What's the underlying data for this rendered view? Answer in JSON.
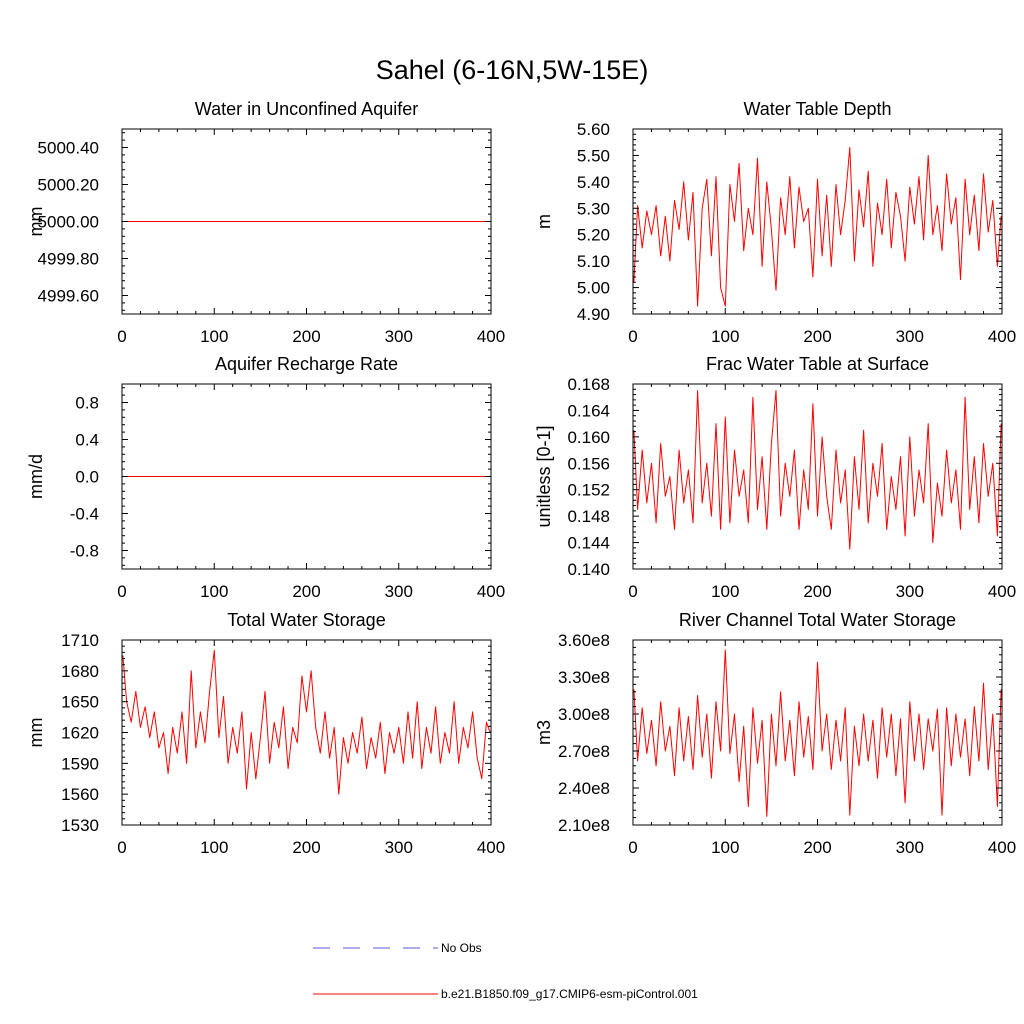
{
  "figure": {
    "title": "Sahel (6-16N,5W-15E)"
  },
  "colors": {
    "series": "#ff0000",
    "obs": "#5a5ad8",
    "axis": "#000000"
  },
  "legend": {
    "obs_label": "No Obs",
    "series_label": "b.e21.B1850.f09_g17.CMIP6-esm-piControl.001"
  },
  "chart_data": [
    {
      "type": "line",
      "title": "Water in Unconfined Aquifer",
      "ylabel": "mm",
      "xlabel": "",
      "xlim": [
        0,
        400
      ],
      "ylim": [
        4999.5,
        5000.5
      ],
      "xticks": [
        0,
        100,
        200,
        300,
        400
      ],
      "xtick_labels": [
        "0",
        "100",
        "200",
        "300",
        "400"
      ],
      "yticks": [
        4999.6,
        4999.8,
        5000.0,
        5000.2,
        5000.4
      ],
      "ytick_labels": [
        "4999.60",
        "4999.80",
        "5000.00",
        "5000.20",
        "5000.40"
      ],
      "series": [
        {
          "name": "b.e21.B1850.f09_g17.CMIP6-esm-piControl.001",
          "x": [
            0,
            400
          ],
          "values": [
            5000.0,
            5000.0
          ]
        }
      ]
    },
    {
      "type": "line",
      "title": "Water Table Depth",
      "ylabel": "m",
      "xlabel": "",
      "xlim": [
        0,
        400
      ],
      "ylim": [
        4.9,
        5.6
      ],
      "xticks": [
        0,
        100,
        200,
        300,
        400
      ],
      "xtick_labels": [
        "0",
        "100",
        "200",
        "300",
        "400"
      ],
      "yticks": [
        4.9,
        5.0,
        5.1,
        5.2,
        5.3,
        5.4,
        5.5,
        5.6
      ],
      "ytick_labels": [
        "4.90",
        "5.00",
        "5.10",
        "5.20",
        "5.30",
        "5.40",
        "5.50",
        "5.60"
      ],
      "series": [
        {
          "name": "b.e21.B1850.f09_g17.CMIP6-esm-piControl.001",
          "x": [
            1,
            5,
            10,
            15,
            20,
            25,
            30,
            35,
            40,
            45,
            50,
            55,
            60,
            65,
            70,
            75,
            80,
            85,
            90,
            95,
            100,
            105,
            110,
            115,
            120,
            125,
            130,
            135,
            140,
            145,
            150,
            155,
            160,
            165,
            170,
            175,
            180,
            185,
            190,
            195,
            200,
            205,
            210,
            215,
            220,
            225,
            230,
            235,
            240,
            245,
            250,
            255,
            260,
            265,
            270,
            275,
            280,
            285,
            290,
            295,
            300,
            305,
            310,
            315,
            320,
            325,
            330,
            335,
            340,
            345,
            350,
            355,
            360,
            365,
            370,
            375,
            380,
            385,
            390,
            395,
            399
          ],
          "values": [
            5.02,
            5.31,
            5.15,
            5.29,
            5.2,
            5.31,
            5.12,
            5.27,
            5.1,
            5.33,
            5.22,
            5.4,
            5.18,
            5.36,
            4.93,
            5.3,
            5.41,
            5.12,
            5.42,
            5.0,
            4.93,
            5.39,
            5.25,
            5.47,
            5.14,
            5.3,
            5.2,
            5.49,
            5.08,
            5.4,
            5.22,
            4.99,
            5.34,
            5.2,
            5.42,
            5.15,
            5.38,
            5.25,
            5.3,
            5.04,
            5.41,
            5.12,
            5.35,
            5.08,
            5.39,
            5.2,
            5.33,
            5.53,
            5.1,
            5.37,
            5.23,
            5.44,
            5.08,
            5.32,
            5.2,
            5.41,
            5.15,
            5.36,
            5.27,
            5.1,
            5.38,
            5.24,
            5.42,
            5.18,
            5.5,
            5.2,
            5.31,
            5.14,
            5.43,
            5.24,
            5.34,
            5.03,
            5.41,
            5.2,
            5.35,
            5.14,
            5.43,
            5.21,
            5.33,
            5.08,
            5.27
          ]
        }
      ]
    },
    {
      "type": "line",
      "title": "Aquifer Recharge Rate",
      "ylabel": "mm/d",
      "xlabel": "",
      "xlim": [
        0,
        400
      ],
      "ylim": [
        -1.0,
        1.0
      ],
      "xticks": [
        0,
        100,
        200,
        300,
        400
      ],
      "xtick_labels": [
        "0",
        "100",
        "200",
        "300",
        "400"
      ],
      "yticks": [
        -0.8,
        -0.4,
        0.0,
        0.4,
        0.8
      ],
      "ytick_labels": [
        "-0.8",
        "-0.4",
        "0.0",
        "0.4",
        "0.8"
      ],
      "series": [
        {
          "name": "b.e21.B1850.f09_g17.CMIP6-esm-piControl.001",
          "x": [
            0,
            400
          ],
          "values": [
            0.0,
            0.0
          ]
        }
      ]
    },
    {
      "type": "line",
      "title": "Frac Water Table at Surface",
      "ylabel": "unitless [0-1]",
      "xlabel": "",
      "xlim": [
        0,
        400
      ],
      "ylim": [
        0.14,
        0.168
      ],
      "xticks": [
        0,
        100,
        200,
        300,
        400
      ],
      "xtick_labels": [
        "0",
        "100",
        "200",
        "300",
        "400"
      ],
      "yticks": [
        0.14,
        0.144,
        0.148,
        0.152,
        0.156,
        0.16,
        0.164,
        0.168
      ],
      "ytick_labels": [
        "0.140",
        "0.144",
        "0.148",
        "0.152",
        "0.156",
        "0.160",
        "0.164",
        "0.168"
      ],
      "series": [
        {
          "name": "b.e21.B1850.f09_g17.CMIP6-esm-piControl.001",
          "x": [
            1,
            5,
            10,
            15,
            20,
            25,
            30,
            35,
            40,
            45,
            50,
            55,
            60,
            65,
            70,
            75,
            80,
            85,
            90,
            95,
            100,
            105,
            110,
            115,
            120,
            125,
            130,
            135,
            140,
            145,
            150,
            155,
            160,
            165,
            170,
            175,
            180,
            185,
            190,
            195,
            200,
            205,
            210,
            215,
            220,
            225,
            230,
            235,
            240,
            245,
            250,
            255,
            260,
            265,
            270,
            275,
            280,
            285,
            290,
            295,
            300,
            305,
            310,
            315,
            320,
            325,
            330,
            335,
            340,
            345,
            350,
            355,
            360,
            365,
            370,
            375,
            380,
            385,
            390,
            395,
            399
          ],
          "values": [
            0.161,
            0.149,
            0.158,
            0.15,
            0.156,
            0.147,
            0.159,
            0.151,
            0.154,
            0.146,
            0.158,
            0.15,
            0.155,
            0.147,
            0.167,
            0.15,
            0.156,
            0.148,
            0.162,
            0.146,
            0.163,
            0.147,
            0.158,
            0.151,
            0.155,
            0.147,
            0.166,
            0.149,
            0.157,
            0.146,
            0.159,
            0.167,
            0.148,
            0.156,
            0.151,
            0.158,
            0.146,
            0.155,
            0.149,
            0.165,
            0.148,
            0.16,
            0.151,
            0.146,
            0.158,
            0.15,
            0.155,
            0.143,
            0.157,
            0.149,
            0.161,
            0.147,
            0.156,
            0.151,
            0.159,
            0.146,
            0.154,
            0.149,
            0.157,
            0.145,
            0.16,
            0.148,
            0.155,
            0.15,
            0.162,
            0.144,
            0.153,
            0.148,
            0.158,
            0.15,
            0.155,
            0.146,
            0.166,
            0.149,
            0.157,
            0.147,
            0.159,
            0.151,
            0.156,
            0.145,
            0.162
          ]
        }
      ]
    },
    {
      "type": "line",
      "title": "Total Water Storage",
      "ylabel": "mm",
      "xlabel": "",
      "xlim": [
        0,
        400
      ],
      "ylim": [
        1530,
        1710
      ],
      "xticks": [
        0,
        100,
        200,
        300,
        400
      ],
      "xtick_labels": [
        "0",
        "100",
        "200",
        "300",
        "400"
      ],
      "yticks": [
        1530,
        1560,
        1590,
        1620,
        1650,
        1680,
        1710
      ],
      "ytick_labels": [
        "1530",
        "1560",
        "1590",
        "1620",
        "1650",
        "1680",
        "1710"
      ],
      "series": [
        {
          "name": "b.e21.B1850.f09_g17.CMIP6-esm-piControl.001",
          "x": [
            1,
            5,
            10,
            15,
            20,
            25,
            30,
            35,
            40,
            45,
            50,
            55,
            60,
            65,
            70,
            75,
            80,
            85,
            90,
            95,
            100,
            105,
            110,
            115,
            120,
            125,
            130,
            135,
            140,
            145,
            150,
            155,
            160,
            165,
            170,
            175,
            180,
            185,
            190,
            195,
            200,
            205,
            210,
            215,
            220,
            225,
            230,
            235,
            240,
            245,
            250,
            255,
            260,
            265,
            270,
            275,
            280,
            285,
            290,
            295,
            300,
            305,
            310,
            315,
            320,
            325,
            330,
            335,
            340,
            345,
            350,
            355,
            360,
            365,
            370,
            375,
            380,
            385,
            390,
            395,
            399
          ],
          "values": [
            1695,
            1650,
            1630,
            1660,
            1625,
            1645,
            1615,
            1640,
            1605,
            1620,
            1580,
            1625,
            1600,
            1640,
            1590,
            1680,
            1605,
            1640,
            1610,
            1660,
            1700,
            1615,
            1655,
            1590,
            1625,
            1600,
            1640,
            1565,
            1620,
            1575,
            1615,
            1660,
            1590,
            1630,
            1605,
            1645,
            1585,
            1625,
            1610,
            1675,
            1640,
            1680,
            1625,
            1600,
            1640,
            1595,
            1625,
            1560,
            1615,
            1590,
            1620,
            1600,
            1635,
            1585,
            1615,
            1595,
            1630,
            1580,
            1620,
            1600,
            1625,
            1590,
            1640,
            1595,
            1650,
            1585,
            1625,
            1600,
            1645,
            1590,
            1620,
            1600,
            1650,
            1590,
            1625,
            1605,
            1640,
            1595,
            1575,
            1630,
            1620
          ]
        }
      ]
    },
    {
      "type": "line",
      "title": "River Channel Total Water Storage",
      "ylabel": "m3",
      "xlabel": "",
      "xlim": [
        0,
        400
      ],
      "ylim": [
        210000000,
        360000000
      ],
      "xticks": [
        0,
        100,
        200,
        300,
        400
      ],
      "xtick_labels": [
        "0",
        "100",
        "200",
        "300",
        "400"
      ],
      "yticks": [
        210000000,
        240000000,
        270000000,
        300000000,
        330000000,
        360000000
      ],
      "ytick_labels": [
        "2.10e8",
        "2.40e8",
        "2.70e8",
        "3.00e8",
        "3.30e8",
        "3.60e8"
      ],
      "series": [
        {
          "name": "b.e21.B1850.f09_g17.CMIP6-esm-piControl.001",
          "x": [
            1,
            5,
            10,
            15,
            20,
            25,
            30,
            35,
            40,
            45,
            50,
            55,
            60,
            65,
            70,
            75,
            80,
            85,
            90,
            95,
            100,
            105,
            110,
            115,
            120,
            125,
            130,
            135,
            140,
            145,
            150,
            155,
            160,
            165,
            170,
            175,
            180,
            185,
            190,
            195,
            200,
            205,
            210,
            215,
            220,
            225,
            230,
            235,
            240,
            245,
            250,
            255,
            260,
            265,
            270,
            275,
            280,
            285,
            290,
            295,
            300,
            305,
            310,
            315,
            320,
            325,
            330,
            335,
            340,
            345,
            350,
            355,
            360,
            365,
            370,
            375,
            380,
            385,
            390,
            395,
            399
          ],
          "values": [
            320000000,
            262000000,
            305000000,
            268000000,
            295000000,
            258000000,
            310000000,
            270000000,
            290000000,
            250000000,
            305000000,
            262000000,
            298000000,
            255000000,
            315000000,
            265000000,
            300000000,
            248000000,
            310000000,
            270000000,
            352000000,
            268000000,
            300000000,
            245000000,
            290000000,
            225000000,
            305000000,
            260000000,
            295000000,
            217000000,
            300000000,
            258000000,
            318000000,
            262000000,
            295000000,
            250000000,
            310000000,
            265000000,
            298000000,
            255000000,
            342000000,
            270000000,
            300000000,
            255000000,
            295000000,
            262000000,
            305000000,
            218000000,
            290000000,
            258000000,
            300000000,
            262000000,
            295000000,
            248000000,
            305000000,
            265000000,
            300000000,
            250000000,
            296000000,
            228000000,
            310000000,
            262000000,
            300000000,
            255000000,
            296000000,
            270000000,
            304000000,
            218000000,
            305000000,
            258000000,
            300000000,
            265000000,
            296000000,
            250000000,
            306000000,
            262000000,
            325000000,
            255000000,
            300000000,
            225000000,
            320000000
          ]
        }
      ]
    }
  ]
}
